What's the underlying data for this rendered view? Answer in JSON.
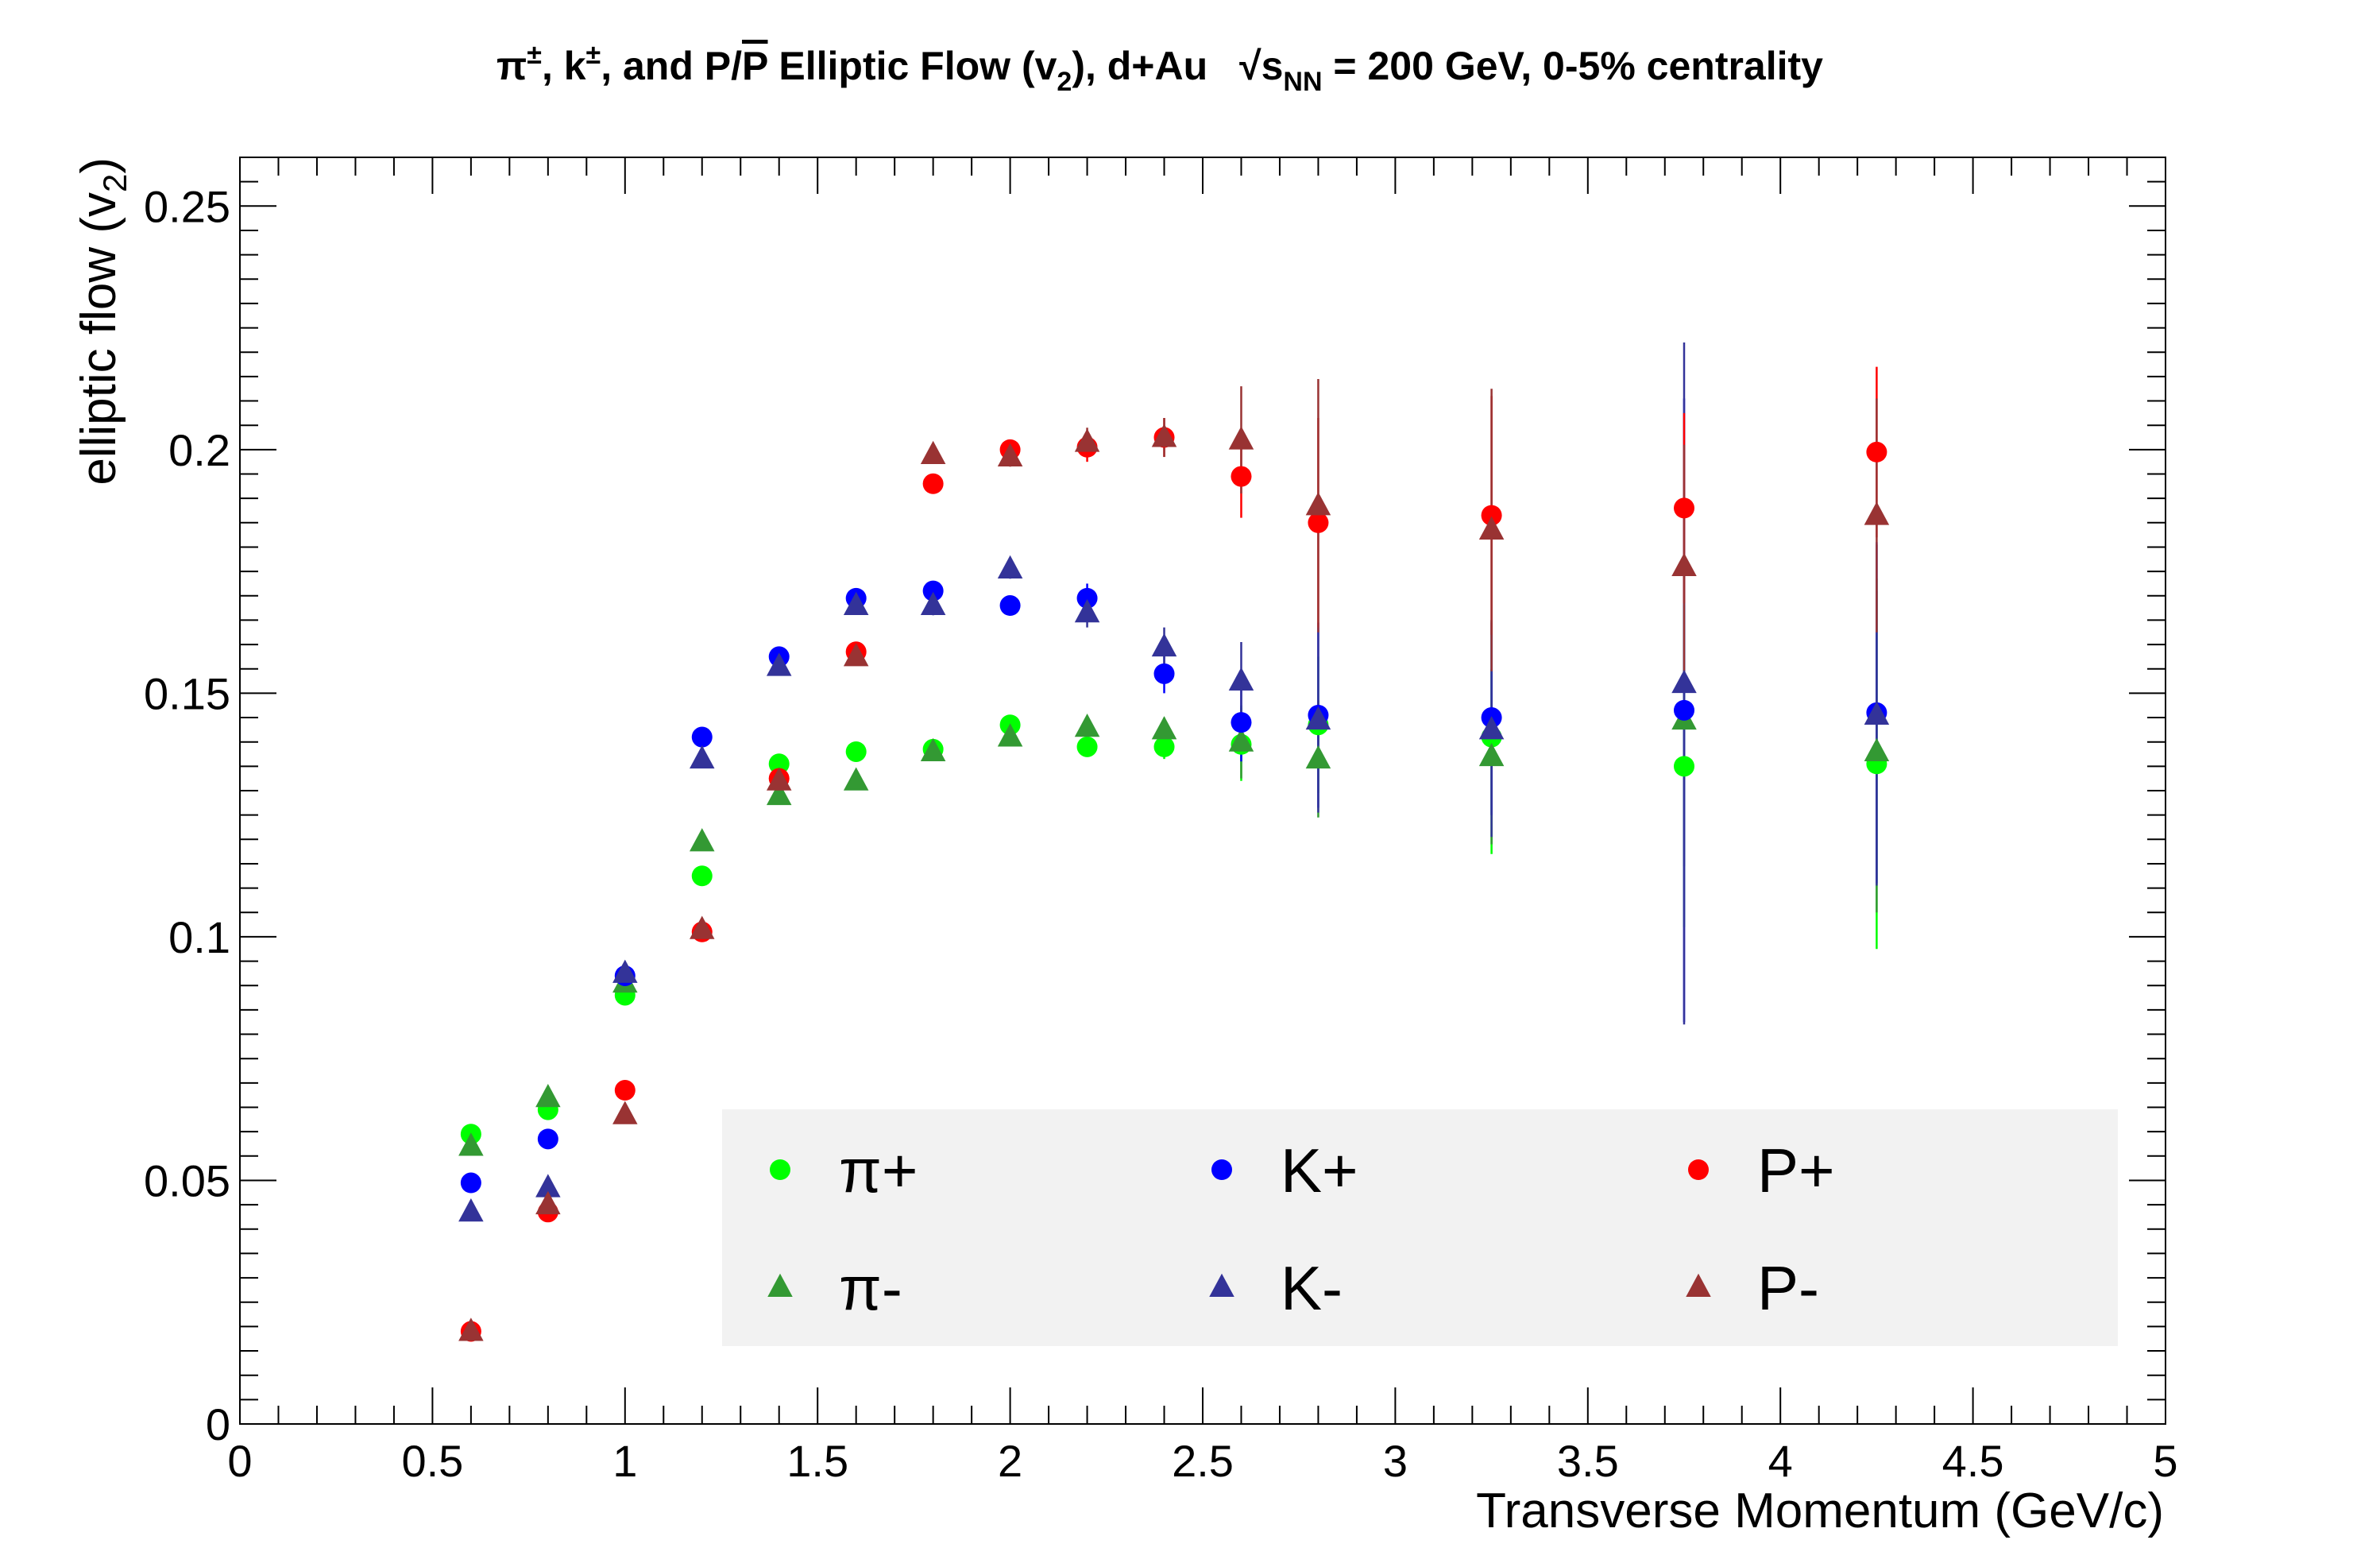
{
  "chart_data": {
    "type": "scatter",
    "title": {
      "prefix_pi": "π",
      "pm1": "±",
      "sep1": ", k",
      "pm2": "±",
      "sep2": ", and P/",
      "pbar": "P",
      "mid": " Elliptic Flow (v",
      "sub2": "2",
      "after": "), d+Au",
      "sqrt": "√s",
      "nn": "NN",
      "energy": " = 200 GeV, 0-5% centrality"
    },
    "xlabel": "Transverse Momentum (GeV/c)",
    "ylabel": {
      "main": "elliptic flow (v",
      "sub": "2",
      "close": ")"
    },
    "xlim": [
      0,
      5
    ],
    "ylim": [
      0,
      0.26
    ],
    "x_ticks": [
      "0",
      "0.5",
      "1",
      "1.5",
      "2",
      "2.5",
      "3",
      "3.5",
      "4",
      "4.5",
      "5"
    ],
    "y_ticks": [
      "0",
      "0.05",
      "0.1",
      "0.15",
      "0.2",
      "0.25"
    ],
    "grid": false,
    "legend_placement": "bottom-right",
    "legend_background": "#f2f2f2",
    "series": [
      {
        "name": "π+",
        "marker": "circle",
        "color": "#00ff00",
        "error_color": "#00ff00",
        "x": [
          0.6,
          0.8,
          1.0,
          1.2,
          1.4,
          1.6,
          1.8,
          2.0,
          2.2,
          2.4,
          2.6,
          2.8,
          3.25,
          3.75,
          4.25
        ],
        "y": [
          0.0595,
          0.0645,
          0.088,
          0.1125,
          0.1355,
          0.138,
          0.1385,
          0.1435,
          0.139,
          0.139,
          0.1395,
          0.1435,
          0.141,
          0.135,
          0.1355
        ],
        "err": [
          0.001,
          0.001,
          0.001,
          0.001,
          0.001,
          0.001,
          0.0015,
          0.0015,
          0.002,
          0.0025,
          0.0075,
          0.014,
          0.024,
          0.033,
          0.038
        ]
      },
      {
        "name": "π-",
        "marker": "triangle",
        "color": "#339933",
        "error_color": "#339933",
        "x": [
          0.6,
          0.8,
          1.0,
          1.2,
          1.4,
          1.6,
          1.8,
          2.0,
          2.2,
          2.4,
          2.6,
          2.8,
          3.25,
          3.75,
          4.25
        ],
        "y": [
          0.057,
          0.067,
          0.0905,
          0.1195,
          0.129,
          0.132,
          0.138,
          0.141,
          0.143,
          0.1425,
          0.14,
          0.1365,
          0.137,
          0.1445,
          0.138
        ],
        "err": [
          0.001,
          0.001,
          0.001,
          0.001,
          0.001,
          0.001,
          0.0015,
          0.0015,
          0.002,
          0.0025,
          0.0075,
          0.012,
          0.018,
          0.03,
          0.033
        ]
      },
      {
        "name": "K+",
        "marker": "circle",
        "color": "#0000ff",
        "error_color": "#0000ff",
        "x": [
          0.6,
          0.8,
          1.0,
          1.2,
          1.4,
          1.6,
          1.8,
          2.0,
          2.2,
          2.4,
          2.6,
          2.8,
          3.25,
          3.75,
          4.25
        ],
        "y": [
          0.0495,
          0.0585,
          0.092,
          0.141,
          0.1575,
          0.1695,
          0.171,
          0.168,
          0.1695,
          0.154,
          0.144,
          0.1455,
          0.145,
          0.1465,
          0.146
        ],
        "err": [
          0.001,
          0.001,
          0.001,
          0.001,
          0.001,
          0.001,
          0.002,
          0.002,
          0.003,
          0.004,
          0.008,
          0.019,
          0.02,
          0.064,
          0.035
        ]
      },
      {
        "name": "K-",
        "marker": "triangle",
        "color": "#333399",
        "error_color": "#333399",
        "x": [
          0.6,
          0.8,
          1.0,
          1.2,
          1.4,
          1.6,
          1.8,
          2.0,
          2.2,
          2.4,
          2.6,
          2.8,
          3.25,
          3.75,
          4.25
        ],
        "y": [
          0.0435,
          0.0485,
          0.0925,
          0.1365,
          0.1555,
          0.168,
          0.168,
          0.1755,
          0.1665,
          0.1595,
          0.1525,
          0.1445,
          0.1425,
          0.152,
          0.1455
        ],
        "err": [
          0.001,
          0.001,
          0.001,
          0.001,
          0.001,
          0.001,
          0.002,
          0.002,
          0.003,
          0.004,
          0.008,
          0.019,
          0.022,
          0.07,
          0.035
        ]
      },
      {
        "name": "P+",
        "marker": "circle",
        "color": "#ff0000",
        "error_color": "#ff0000",
        "x": [
          0.6,
          0.8,
          1.0,
          1.2,
          1.4,
          1.6,
          1.8,
          2.0,
          2.2,
          2.4,
          2.6,
          2.8,
          3.25,
          3.75,
          4.25
        ],
        "y": [
          0.019,
          0.0435,
          0.0685,
          0.101,
          0.1325,
          0.1585,
          0.193,
          0.2,
          0.2005,
          0.2025,
          0.1945,
          0.185,
          0.1865,
          0.188,
          0.1995
        ],
        "err": [
          0.001,
          0.001,
          0.001,
          0.001,
          0.001,
          0.001,
          0.001,
          0.002,
          0.003,
          0.004,
          0.0085,
          0.0215,
          0.0245,
          0.0195,
          0.0175
        ]
      },
      {
        "name": "P-",
        "marker": "triangle",
        "color": "#993333",
        "error_color": "#993333",
        "x": [
          0.6,
          0.8,
          1.0,
          1.2,
          1.4,
          1.6,
          1.8,
          2.0,
          2.2,
          2.4,
          2.6,
          2.8,
          3.25,
          3.75,
          4.25
        ],
        "y": [
          0.019,
          0.045,
          0.0635,
          0.1015,
          0.132,
          0.1575,
          0.199,
          0.1985,
          0.2015,
          0.2025,
          0.202,
          0.1885,
          0.1835,
          0.176,
          0.1865
        ],
        "err": [
          0.001,
          0.001,
          0.001,
          0.001,
          0.001,
          0.001,
          0.001,
          0.002,
          0.003,
          0.004,
          0.011,
          0.026,
          0.029,
          0.025,
          0.024
        ]
      }
    ]
  }
}
